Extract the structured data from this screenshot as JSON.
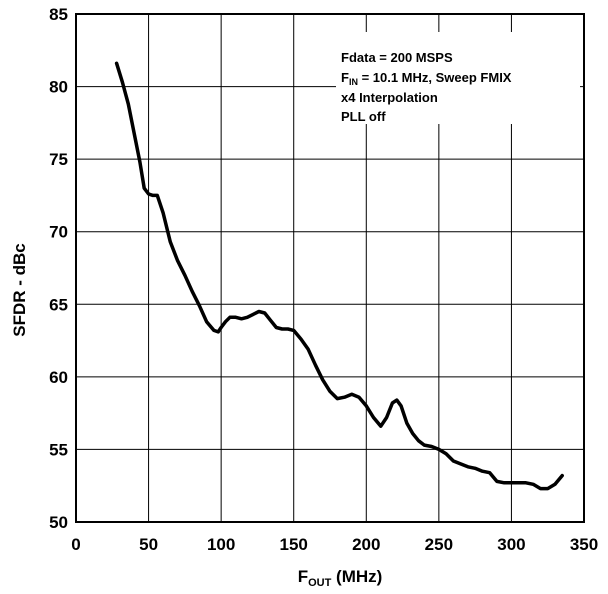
{
  "chart_data": {
    "type": "line",
    "title": "",
    "xlabel": {
      "main": "F",
      "sub": "OUT",
      "rest": " (MHz)"
    },
    "ylabel": "SFDR - dBc",
    "xlim": [
      0,
      350
    ],
    "ylim": [
      50,
      85
    ],
    "xticks": [
      0,
      50,
      100,
      150,
      200,
      250,
      300,
      350
    ],
    "yticks": [
      50,
      55,
      60,
      65,
      70,
      75,
      80,
      85
    ],
    "grid": true,
    "annotations": {
      "line1": "Fdata = 200 MSPS",
      "line2_main": "F",
      "line2_sub": "IN",
      "line2_rest": " = 10.1 MHz, Sweep FMIX",
      "line3": "x4 Interpolation",
      "line4": "PLL off"
    },
    "series": [
      {
        "color": "#000000",
        "x": [
          28,
          32,
          36,
          40,
          44,
          47,
          50,
          53,
          56,
          60,
          65,
          70,
          75,
          80,
          85,
          90,
          95,
          98,
          100,
          103,
          106,
          110,
          114,
          118,
          122,
          126,
          130,
          134,
          138,
          142,
          146,
          150,
          155,
          160,
          165,
          170,
          175,
          180,
          185,
          190,
          195,
          200,
          205,
          210,
          214,
          218,
          221,
          224,
          228,
          232,
          236,
          240,
          245,
          250,
          255,
          260,
          265,
          270,
          275,
          280,
          285,
          290,
          295,
          300,
          305,
          310,
          315,
          320,
          325,
          330,
          335
        ],
        "y": [
          81.6,
          80.3,
          78.8,
          76.8,
          74.8,
          73.0,
          72.6,
          72.5,
          72.5,
          71.3,
          69.3,
          68.0,
          67.0,
          65.9,
          64.9,
          63.8,
          63.2,
          63.1,
          63.4,
          63.8,
          64.1,
          64.1,
          64.0,
          64.1,
          64.3,
          64.5,
          64.4,
          63.9,
          63.4,
          63.3,
          63.3,
          63.2,
          62.6,
          61.9,
          60.8,
          59.8,
          59.0,
          58.5,
          58.6,
          58.8,
          58.6,
          58.0,
          57.2,
          56.6,
          57.2,
          58.2,
          58.4,
          58.0,
          56.8,
          56.1,
          55.6,
          55.3,
          55.2,
          55.0,
          54.7,
          54.2,
          54.0,
          53.8,
          53.7,
          53.5,
          53.4,
          52.8,
          52.7,
          52.7,
          52.7,
          52.7,
          52.6,
          52.3,
          52.3,
          52.6,
          53.2
        ]
      }
    ]
  }
}
